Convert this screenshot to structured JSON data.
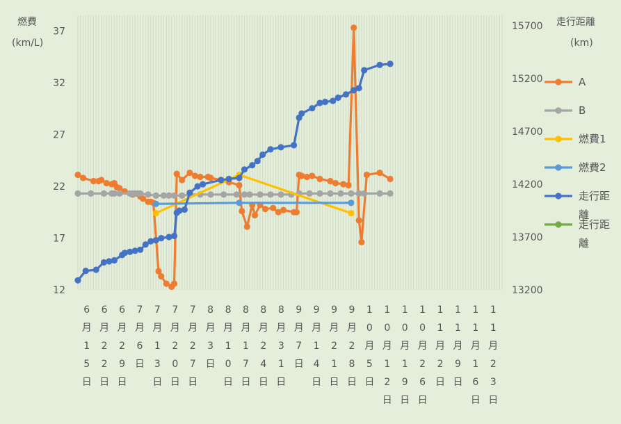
{
  "chart_data": {
    "type": "line",
    "y_left_label": "燃費",
    "y_left_unit": "(km/L)",
    "y_right_label": "走行距離",
    "y_right_unit": "(km)",
    "y_left_ticks": [
      "12",
      "17",
      "22",
      "27",
      "32",
      "37"
    ],
    "y_right_ticks": [
      "13200",
      "13700",
      "14200",
      "14700",
      "15200",
      "15700"
    ],
    "ylim_left": [
      12,
      38.5
    ],
    "ylim_right": [
      13200,
      15800
    ],
    "x_start": "2021-06-15",
    "x_end": "2021-11-25",
    "x_ticks": [
      "6月15日",
      "6月22日",
      "6月29日",
      "7月6日",
      "7月13日",
      "7月20日",
      "7月27日",
      "8月3日",
      "8月10日",
      "8月17日",
      "8月24日",
      "8月31日",
      "9月7日",
      "9月14日",
      "9月21日",
      "9月28日",
      "10月5日",
      "10月12日",
      "10月19日",
      "10月26日",
      "11月2日",
      "11月9日",
      "11月16日",
      "11月23日"
    ],
    "grid": true,
    "legend_position": "right",
    "series": [
      {
        "name": "A",
        "axis": "left",
        "color": "#ed7d31",
        "points": [
          [
            "2021-06-15",
            23.1
          ],
          [
            "2021-06-17",
            22.8
          ],
          [
            "2021-06-21",
            22.5
          ],
          [
            "2021-06-23",
            22.5
          ],
          [
            "2021-06-24",
            22.6
          ],
          [
            "2021-06-26",
            22.3
          ],
          [
            "2021-06-28",
            22.2
          ],
          [
            "2021-06-29",
            22.3
          ],
          [
            "2021-06-30",
            21.9
          ],
          [
            "2021-07-01",
            21.8
          ],
          [
            "2021-07-03",
            21.5
          ],
          [
            "2021-07-06",
            21.2
          ],
          [
            "2021-07-09",
            21.0
          ],
          [
            "2021-07-10",
            20.8
          ],
          [
            "2021-07-12",
            20.5
          ],
          [
            "2021-07-13",
            20.5
          ],
          [
            "2021-07-14",
            20.4
          ],
          [
            "2021-07-16",
            13.8
          ],
          [
            "2021-07-17",
            13.3
          ],
          [
            "2021-07-19",
            12.6
          ],
          [
            "2021-07-21",
            12.3
          ],
          [
            "2021-07-22",
            12.6
          ],
          [
            "2021-07-23",
            23.2
          ],
          [
            "2021-07-25",
            22.6
          ],
          [
            "2021-07-28",
            23.3
          ],
          [
            "2021-07-30",
            23.0
          ],
          [
            "2021-08-01",
            22.9
          ],
          [
            "2021-08-04",
            22.9
          ],
          [
            "2021-08-05",
            22.8
          ],
          [
            "2021-08-09",
            22.6
          ],
          [
            "2021-08-12",
            22.4
          ],
          [
            "2021-08-16",
            22.1
          ],
          [
            "2021-08-17",
            19.6
          ],
          [
            "2021-08-19",
            18.1
          ],
          [
            "2021-08-21",
            20.2
          ],
          [
            "2021-08-22",
            19.2
          ],
          [
            "2021-08-24",
            20.2
          ],
          [
            "2021-08-26",
            19.8
          ],
          [
            "2021-08-29",
            19.9
          ],
          [
            "2021-08-31",
            19.5
          ],
          [
            "2021-09-02",
            19.7
          ],
          [
            "2021-09-06",
            19.5
          ],
          [
            "2021-09-07",
            19.5
          ],
          [
            "2021-09-08",
            23.1
          ],
          [
            "2021-09-09",
            23.0
          ],
          [
            "2021-09-11",
            22.9
          ],
          [
            "2021-09-13",
            23.0
          ],
          [
            "2021-09-16",
            22.7
          ],
          [
            "2021-09-20",
            22.5
          ],
          [
            "2021-09-22",
            22.3
          ],
          [
            "2021-09-25",
            22.2
          ],
          [
            "2021-09-27",
            22.1
          ],
          [
            "2021-09-29",
            37.3
          ],
          [
            "2021-10-01",
            18.7
          ],
          [
            "2021-10-02",
            16.6
          ],
          [
            "2021-10-04",
            23.1
          ],
          [
            "2021-10-09",
            23.3
          ],
          [
            "2021-10-13",
            22.7
          ]
        ]
      },
      {
        "name": "B",
        "axis": "left",
        "color": "#a5a5a5",
        "points": [
          [
            "2021-06-15",
            21.3
          ],
          [
            "2021-06-20",
            21.3
          ],
          [
            "2021-06-25",
            21.3
          ],
          [
            "2021-06-28",
            21.3
          ],
          [
            "2021-06-29",
            21.3
          ],
          [
            "2021-07-01",
            21.3
          ],
          [
            "2021-07-05",
            21.3
          ],
          [
            "2021-07-06",
            21.3
          ],
          [
            "2021-07-07",
            21.3
          ],
          [
            "2021-07-08",
            21.3
          ],
          [
            "2021-07-09",
            21.3
          ],
          [
            "2021-07-12",
            21.2
          ],
          [
            "2021-07-15",
            21.1
          ],
          [
            "2021-07-18",
            21.1
          ],
          [
            "2021-07-20",
            21.1
          ],
          [
            "2021-07-22",
            21.1
          ],
          [
            "2021-07-25",
            21.1
          ],
          [
            "2021-07-28",
            21.2
          ],
          [
            "2021-08-01",
            21.2
          ],
          [
            "2021-08-05",
            21.2
          ],
          [
            "2021-08-10",
            21.2
          ],
          [
            "2021-08-15",
            21.2
          ],
          [
            "2021-08-18",
            21.2
          ],
          [
            "2021-08-20",
            21.2
          ],
          [
            "2021-08-24",
            21.2
          ],
          [
            "2021-08-28",
            21.2
          ],
          [
            "2021-09-01",
            21.2
          ],
          [
            "2021-09-05",
            21.2
          ],
          [
            "2021-09-08",
            21.3
          ],
          [
            "2021-09-12",
            21.3
          ],
          [
            "2021-09-16",
            21.3
          ],
          [
            "2021-09-20",
            21.3
          ],
          [
            "2021-09-24",
            21.3
          ],
          [
            "2021-09-28",
            21.3
          ],
          [
            "2021-10-01",
            21.3
          ],
          [
            "2021-10-03",
            21.3
          ],
          [
            "2021-10-09",
            21.3
          ],
          [
            "2021-10-13",
            21.3
          ]
        ]
      },
      {
        "name": "燃費1",
        "axis": "left",
        "color": "#ffc000",
        "points": [
          [
            "2021-07-15",
            19.4
          ],
          [
            "2021-08-16",
            23.1
          ],
          [
            "2021-09-28",
            19.4
          ]
        ]
      },
      {
        "name": "燃費2",
        "axis": "left",
        "color": "#5b9bd5",
        "points": [
          [
            "2021-07-15",
            20.3
          ],
          [
            "2021-08-16",
            20.4
          ],
          [
            "2021-09-28",
            20.4
          ]
        ]
      },
      {
        "name": "走行距離",
        "axis": "right",
        "color": "#4472c4",
        "points": [
          [
            "2021-06-15",
            13290
          ],
          [
            "2021-06-18",
            13380
          ],
          [
            "2021-06-22",
            13390
          ],
          [
            "2021-06-25",
            13460
          ],
          [
            "2021-06-27",
            13470
          ],
          [
            "2021-06-29",
            13480
          ],
          [
            "2021-07-02",
            13530
          ],
          [
            "2021-07-03",
            13550
          ],
          [
            "2021-07-05",
            13560
          ],
          [
            "2021-07-07",
            13570
          ],
          [
            "2021-07-09",
            13580
          ],
          [
            "2021-07-11",
            13630
          ],
          [
            "2021-07-13",
            13660
          ],
          [
            "2021-07-15",
            13670
          ],
          [
            "2021-07-17",
            13690
          ],
          [
            "2021-07-20",
            13700
          ],
          [
            "2021-07-22",
            13710
          ],
          [
            "2021-07-23",
            13930
          ],
          [
            "2021-07-24",
            13950
          ],
          [
            "2021-07-26",
            13960
          ],
          [
            "2021-07-28",
            14120
          ],
          [
            "2021-07-31",
            14180
          ],
          [
            "2021-08-02",
            14200
          ],
          [
            "2021-08-09",
            14240
          ],
          [
            "2021-08-12",
            14250
          ],
          [
            "2021-08-16",
            14260
          ],
          [
            "2021-08-18",
            14340
          ],
          [
            "2021-08-21",
            14380
          ],
          [
            "2021-08-23",
            14420
          ],
          [
            "2021-08-25",
            14480
          ],
          [
            "2021-08-28",
            14530
          ],
          [
            "2021-09-01",
            14550
          ],
          [
            "2021-09-06",
            14570
          ],
          [
            "2021-09-08",
            14830
          ],
          [
            "2021-09-09",
            14870
          ],
          [
            "2021-09-13",
            14920
          ],
          [
            "2021-09-16",
            14970
          ],
          [
            "2021-09-18",
            14980
          ],
          [
            "2021-09-21",
            14990
          ],
          [
            "2021-09-23",
            15020
          ],
          [
            "2021-09-26",
            15050
          ],
          [
            "2021-09-29",
            15090
          ],
          [
            "2021-10-01",
            15110
          ],
          [
            "2021-10-03",
            15280
          ],
          [
            "2021-10-09",
            15330
          ],
          [
            "2021-10-13",
            15340
          ]
        ]
      },
      {
        "name": "走行距離",
        "axis": "right",
        "color": "#70ad47",
        "points": []
      }
    ]
  }
}
